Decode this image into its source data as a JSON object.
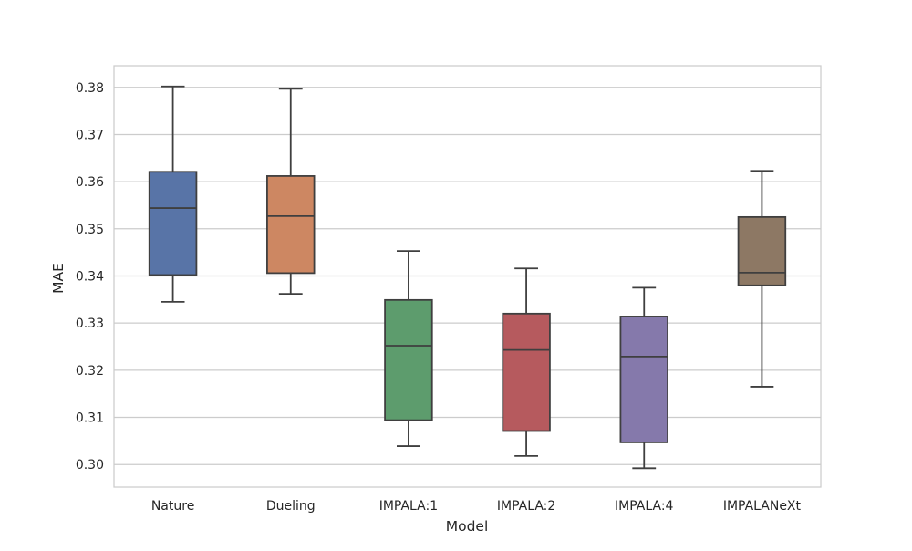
{
  "chart_data": {
    "type": "boxplot",
    "title": "",
    "xlabel": "Model",
    "ylabel": "MAE",
    "ylim": [
      0.2952,
      0.3846
    ],
    "yticks": [
      "0.30",
      "0.31",
      "0.32",
      "0.33",
      "0.34",
      "0.35",
      "0.36",
      "0.37",
      "0.38"
    ],
    "yticks_values": [
      0.3,
      0.31,
      0.32,
      0.33,
      0.34,
      0.35,
      0.36,
      0.37,
      0.38
    ],
    "grid": "horizontal",
    "categories": [
      "Nature",
      "Dueling",
      "IMPALA:1",
      "IMPALA:2",
      "IMPALA:4",
      "IMPALANeXt"
    ],
    "boxes": [
      {
        "category": "Nature",
        "whisker_low": 0.3345,
        "q1": 0.3402,
        "median": 0.3544,
        "q3": 0.3621,
        "whisker_high": 0.3802,
        "color": "#5874a7"
      },
      {
        "category": "Dueling",
        "whisker_low": 0.3362,
        "q1": 0.3406,
        "median": 0.3527,
        "q3": 0.3612,
        "whisker_high": 0.3797,
        "color": "#cd8762"
      },
      {
        "category": "IMPALA:1",
        "whisker_low": 0.3039,
        "q1": 0.3094,
        "median": 0.3252,
        "q3": 0.3349,
        "whisker_high": 0.3453,
        "color": "#5d9c6d"
      },
      {
        "category": "IMPALA:2",
        "whisker_low": 0.3018,
        "q1": 0.3071,
        "median": 0.3243,
        "q3": 0.332,
        "whisker_high": 0.3416,
        "color": "#b65a5e"
      },
      {
        "category": "IMPALA:4",
        "whisker_low": 0.2992,
        "q1": 0.3047,
        "median": 0.3229,
        "q3": 0.3314,
        "whisker_high": 0.3375,
        "color": "#8579ab"
      },
      {
        "category": "IMPALANeXt",
        "whisker_low": 0.3165,
        "q1": 0.338,
        "median": 0.3407,
        "q3": 0.3525,
        "whisker_high": 0.3623,
        "color": "#8d7864"
      }
    ]
  }
}
